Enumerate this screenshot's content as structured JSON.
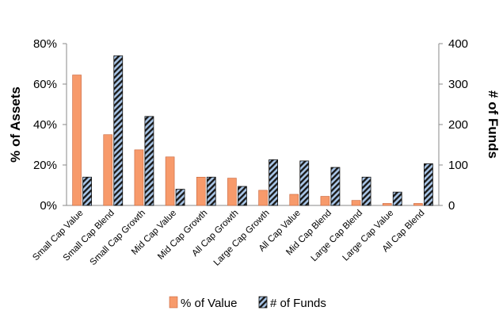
{
  "chart_data": {
    "type": "bar",
    "categories": [
      "Small Cap Value",
      "Small Cap Blend",
      "Small Cap Growth",
      "Mid Cap Value",
      "Mid Cap Growth",
      "All Cap Growth",
      "Large Cap Growth",
      "All Cap Value",
      "Mid Cap Blend",
      "Large Cap Blend",
      "Large Cap Value",
      "All Cap Blend"
    ],
    "series": [
      {
        "name": "% of Value",
        "axis": "left",
        "color": "#F79A6B",
        "values": [
          64.5,
          35,
          27.5,
          24,
          14,
          13.5,
          7.5,
          5.5,
          4.5,
          2.5,
          1.0,
          1.0
        ]
      },
      {
        "name": "# of Funds",
        "axis": "right",
        "color": "#A9C6E8",
        "pattern": "diagonal-hatch",
        "values": [
          70,
          370,
          220,
          40,
          70,
          47,
          113,
          110,
          94,
          70,
          33,
          103
        ]
      }
    ],
    "y_left": {
      "label": "% of Assets",
      "ticks": [
        "0%",
        "20%",
        "40%",
        "60%",
        "80%"
      ],
      "range": [
        0,
        80
      ]
    },
    "y_right": {
      "label": "# of Funds",
      "ticks": [
        "0",
        "100",
        "200",
        "300",
        "400"
      ],
      "range": [
        0,
        400
      ]
    },
    "title": "",
    "xlabel": "",
    "grid": false,
    "legend_position": "bottom"
  }
}
